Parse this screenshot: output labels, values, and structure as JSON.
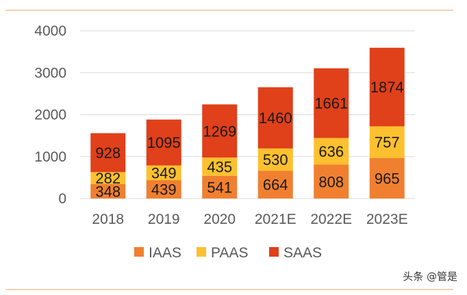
{
  "colors": {
    "iaas": "#F08030",
    "paas": "#FDC02E",
    "saas": "#E0401A",
    "rule": "#F0A060",
    "grid": "#D9D9D9",
    "axis_text": "#595959",
    "label_text": "#1A1A1A"
  },
  "watermark": "头条 @管是",
  "chart_data": {
    "type": "bar",
    "stacked": true,
    "categories": [
      "2018",
      "2019",
      "2020",
      "2021E",
      "2022E",
      "2023E"
    ],
    "series": [
      {
        "name": "IAAS",
        "color_key": "iaas",
        "values": [
          348,
          439,
          541,
          664,
          808,
          965
        ]
      },
      {
        "name": "PAAS",
        "color_key": "paas",
        "values": [
          282,
          349,
          435,
          530,
          636,
          757
        ]
      },
      {
        "name": "SAAS",
        "color_key": "saas",
        "values": [
          928,
          1095,
          1269,
          1460,
          1661,
          1874
        ]
      }
    ],
    "yticks": [
      0,
      1000,
      2000,
      3000,
      4000
    ],
    "ylim": [
      0,
      4000
    ],
    "grid": true,
    "legend_position": "bottom",
    "title": "",
    "xlabel": "",
    "ylabel": ""
  }
}
